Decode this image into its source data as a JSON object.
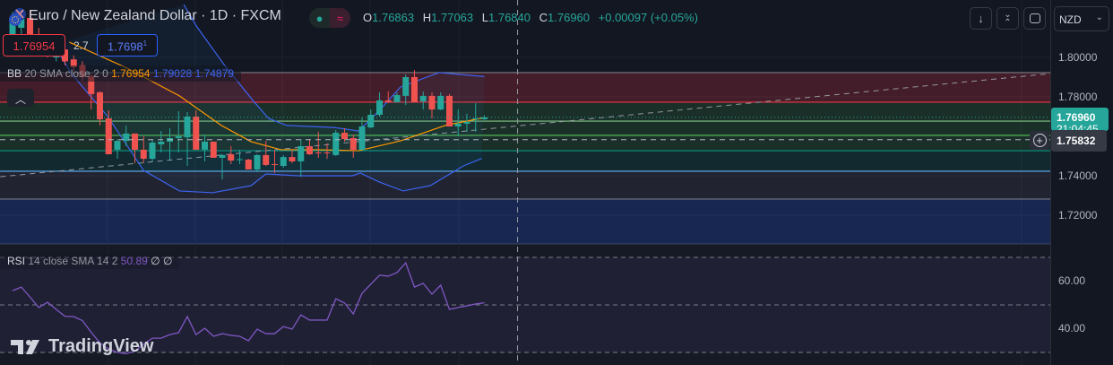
{
  "header": {
    "title": "Euro / New Zealand Dollar · 1D · FXCM",
    "ohlc": {
      "o_label": "O",
      "o": "1.76863",
      "h_label": "H",
      "h": "1.77063",
      "l_label": "L",
      "l": "1.76840",
      "c_label": "C",
      "c": "1.76960",
      "change": "+0.00097 (+0.05%)"
    },
    "status_icons": [
      "market-open-dot-icon",
      "delayed-data-icon"
    ],
    "sell_price": "1.76954",
    "spread": "2.7",
    "buy_price": "1.7698",
    "buy_price_sup": "1",
    "buttons": [
      "arrow-down-icon",
      "collapse-icon",
      "fullscreen-icon"
    ],
    "currency": "NZD"
  },
  "bb_legend": {
    "name": "BB",
    "params": "20 SMA close 2 0",
    "basis": "1.76954",
    "upper": "1.79028",
    "lower": "1.74879"
  },
  "rsi_legend": {
    "name": "RSI",
    "params": "14 close SMA 14 2",
    "value": "50.89",
    "extra1": "∅",
    "extra2": "∅"
  },
  "price_axis": {
    "ticks": [
      "1.80000",
      "1.78000",
      "1.74000",
      "1.72000"
    ],
    "last_price": "1.76960",
    "countdown": "21:04:45",
    "crosshair_price": "1.75832"
  },
  "rsi_axis": {
    "ticks": [
      "60.00",
      "40.00"
    ]
  },
  "brand": "TradingView",
  "colors": {
    "up": "#26a69a",
    "down": "#ef5350",
    "bb_basis": "#ff9800",
    "bb_band": "#2962ff",
    "rsi": "#7e57c2",
    "background": "#131722"
  },
  "chart_data": {
    "type": "candlestick",
    "symbol": "EUR/NZD",
    "interval": "1D",
    "ylim": [
      1.7,
      1.83
    ],
    "candles": [
      [
        1.811,
        1.823,
        1.807,
        1.82
      ],
      [
        1.815,
        1.8245,
        1.811,
        1.823
      ],
      [
        1.82,
        1.824,
        1.808,
        1.81
      ],
      [
        1.811,
        1.815,
        1.804,
        1.806
      ],
      [
        1.806,
        1.81,
        1.8,
        1.802
      ],
      [
        1.8,
        1.806,
        1.798,
        1.804
      ],
      [
        1.804,
        1.808,
        1.796,
        1.798
      ],
      [
        1.799,
        1.801,
        1.793,
        1.795
      ],
      [
        1.796,
        1.798,
        1.788,
        1.79
      ],
      [
        1.7905,
        1.7914,
        1.7736,
        1.7814
      ],
      [
        1.7823,
        1.7827,
        1.7655,
        1.7686
      ],
      [
        1.7691,
        1.7732,
        1.7509,
        1.7509
      ],
      [
        1.7532,
        1.7586,
        1.7486,
        1.7577
      ],
      [
        1.7577,
        1.7655,
        1.755,
        1.7614
      ],
      [
        1.7614,
        1.7614,
        1.7464,
        1.7532
      ],
      [
        1.7532,
        1.76,
        1.7464,
        1.7486
      ],
      [
        1.7486,
        1.7586,
        1.7473,
        1.7568
      ],
      [
        1.7559,
        1.7627,
        1.7518,
        1.7573
      ],
      [
        1.7573,
        1.7641,
        1.7482,
        1.7591
      ],
      [
        1.7591,
        1.7727,
        1.7518,
        1.76
      ],
      [
        1.7595,
        1.7723,
        1.745,
        1.77
      ],
      [
        1.77,
        1.7732,
        1.7532,
        1.7532
      ],
      [
        1.7532,
        1.7609,
        1.7473,
        1.7573
      ],
      [
        1.7573,
        1.7573,
        1.7491,
        1.7491
      ],
      [
        1.7491,
        1.7509,
        1.7382,
        1.7505
      ],
      [
        1.7509,
        1.755,
        1.7459,
        1.7477
      ],
      [
        1.7482,
        1.7532,
        1.7459,
        1.7484
      ],
      [
        1.7482,
        1.7486,
        1.7432,
        1.7432
      ],
      [
        1.7432,
        1.7509,
        1.7418,
        1.7505
      ],
      [
        1.7505,
        1.7577,
        1.745,
        1.7455
      ],
      [
        1.7459,
        1.7532,
        1.7414,
        1.7455
      ],
      [
        1.745,
        1.7505,
        1.7441,
        1.7495
      ],
      [
        1.7495,
        1.7532,
        1.7464,
        1.7473
      ],
      [
        1.7473,
        1.7586,
        1.7395,
        1.755
      ],
      [
        1.755,
        1.7586,
        1.7505,
        1.7509
      ],
      [
        1.7518,
        1.7623,
        1.7491,
        1.7514
      ],
      [
        1.7518,
        1.7564,
        1.7486,
        1.7514
      ],
      [
        1.7505,
        1.7632,
        1.75,
        1.7618
      ],
      [
        1.7618,
        1.7641,
        1.7573,
        1.7586
      ],
      [
        1.7591,
        1.7609,
        1.7491,
        1.7532
      ],
      [
        1.7532,
        1.7695,
        1.7532,
        1.765
      ],
      [
        1.7645,
        1.7736,
        1.7641,
        1.7709
      ],
      [
        1.7709,
        1.7823,
        1.77,
        1.7782
      ],
      [
        1.7782,
        1.7827,
        1.7768,
        1.7773
      ],
      [
        1.7773,
        1.7823,
        1.7773,
        1.7809
      ],
      [
        1.7805,
        1.7914,
        1.7759,
        1.79
      ],
      [
        1.79,
        1.7936,
        1.7773,
        1.7773
      ],
      [
        1.7777,
        1.7827,
        1.7736,
        1.7805
      ],
      [
        1.7805,
        1.7823,
        1.7691,
        1.7736
      ],
      [
        1.7736,
        1.7823,
        1.7732,
        1.7805
      ],
      [
        1.7805,
        1.7814,
        1.765,
        1.765
      ],
      [
        1.765,
        1.7736,
        1.76,
        1.7664
      ],
      [
        1.7664,
        1.7714,
        1.7623,
        1.7673
      ],
      [
        1.7686,
        1.7768,
        1.7623,
        1.7691
      ],
      [
        1.76863,
        1.77063,
        1.7684,
        1.7696
      ]
    ],
    "bb_upper": [
      [
        19.6,
        1.8268
      ],
      [
        21.1,
        1.8155
      ],
      [
        24.2,
        1.7964
      ],
      [
        27.6,
        1.7777
      ],
      [
        29.3,
        1.7691
      ],
      [
        31.4,
        1.7655
      ],
      [
        36.8,
        1.7645
      ],
      [
        39.6,
        1.7627
      ],
      [
        42,
        1.7732
      ],
      [
        44.4,
        1.785
      ],
      [
        48.8,
        1.7923
      ],
      [
        54,
        1.7903
      ]
    ],
    "bb_basis": [
      [
        6.5,
        1.8077
      ],
      [
        12.9,
        1.795
      ],
      [
        19.1,
        1.7805
      ],
      [
        23.9,
        1.7655
      ],
      [
        27.3,
        1.7573
      ],
      [
        30.7,
        1.7532
      ],
      [
        34.8,
        1.7532
      ],
      [
        39.6,
        1.7527
      ],
      [
        44.4,
        1.7577
      ],
      [
        49.5,
        1.7655
      ],
      [
        54,
        1.7695
      ]
    ],
    "bb_lower": [
      [
        4.7,
        1.8064
      ],
      [
        6.8,
        1.7914
      ],
      [
        10.9,
        1.77
      ],
      [
        15,
        1.7427
      ],
      [
        19.1,
        1.7323
      ],
      [
        22.9,
        1.7314
      ],
      [
        27.3,
        1.735
      ],
      [
        29,
        1.7409
      ],
      [
        32.7,
        1.74
      ],
      [
        38.9,
        1.74
      ],
      [
        39.8,
        1.7414
      ],
      [
        42,
        1.7368
      ],
      [
        44.7,
        1.7323
      ],
      [
        47.8,
        1.735
      ],
      [
        51.6,
        1.745
      ],
      [
        53.7,
        1.7488
      ]
    ],
    "levels": [
      {
        "price": 1.7923,
        "color": "#787b86",
        "fill": "rgba(242,54,69,0.22)"
      },
      {
        "price": 1.7773,
        "color": "#f23645",
        "fill": "rgba(76,175,80,0.16)"
      },
      {
        "price": 1.7677,
        "color": "#81c784",
        "fill": null
      },
      {
        "price": 1.7605,
        "color": "#4caf50",
        "fill": null
      },
      {
        "price": 1.7527,
        "color": "#089981",
        "fill": "rgba(8,153,129,0.14)"
      },
      {
        "price": 1.7423,
        "color": "#64b5f6",
        "fill": "rgba(120,123,134,0.14)"
      },
      {
        "price": 1.7282,
        "color": "#787b86",
        "fill": "rgba(41,98,255,0.22)"
      }
    ],
    "trendline": [
      [
        -1.4,
        1.7395
      ],
      [
        118.8,
        1.7918
      ]
    ],
    "last_price": 1.7696,
    "crosshair": {
      "index": 57.8,
      "price": 1.75832
    },
    "rsi": {
      "levels": [
        70,
        50,
        30
      ],
      "ylim": [
        25,
        75
      ],
      "values": [
        56.0,
        57.5,
        53.3,
        48.9,
        51.1,
        48.1,
        45.2,
        45.1,
        43.4,
        38.5,
        34.0,
        31.5,
        30.0,
        29.5,
        30.5,
        33.5,
        36.0,
        36.0,
        37.5,
        38.3,
        45.1,
        37.5,
        40.2,
        36.8,
        37.9,
        37.2,
        36.8,
        34.9,
        39.8,
        37.9,
        37.9,
        40.9,
        39.8,
        45.8,
        43.6,
        43.6,
        43.6,
        52.6,
        50.8,
        46.2,
        54.9,
        58.7,
        62.5,
        62.1,
        63.6,
        67.7,
        57.5,
        59.1,
        54.5,
        58.3,
        48.1,
        48.9,
        49.6,
        50.4,
        50.89
      ]
    }
  }
}
